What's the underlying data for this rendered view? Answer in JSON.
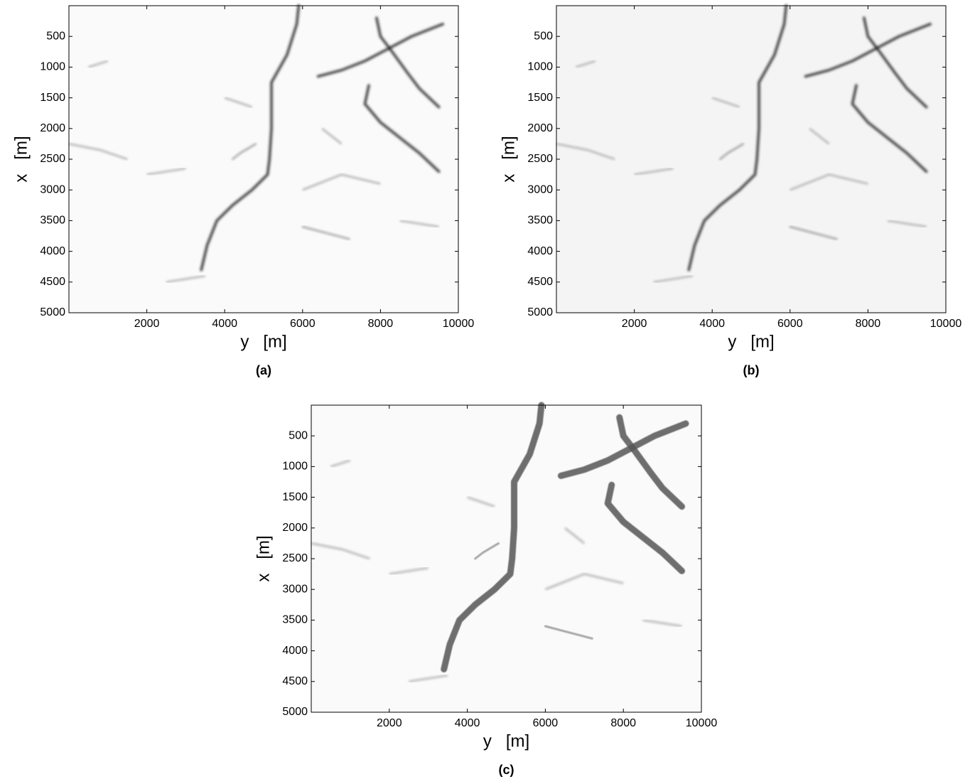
{
  "chart_data": [
    {
      "type": "image",
      "caption": "(a)",
      "x_label": "y   [m]",
      "y_label": "x   [m]",
      "xlim": [
        0,
        10000
      ],
      "ylim": [
        0,
        5000
      ],
      "xticks": [
        2000,
        4000,
        6000,
        8000,
        10000
      ],
      "yticks": [
        500,
        1000,
        1500,
        2000,
        2500,
        3000,
        3500,
        4000,
        4500,
        5000
      ]
    },
    {
      "type": "image",
      "caption": "(b)",
      "x_label": "y   [m]",
      "y_label": "x   [m]",
      "xlim": [
        0,
        10000
      ],
      "ylim": [
        0,
        5000
      ],
      "xticks": [
        2000,
        4000,
        6000,
        8000,
        10000
      ],
      "yticks": [
        500,
        1000,
        1500,
        2000,
        2500,
        3000,
        3500,
        4000,
        4500,
        5000
      ]
    },
    {
      "type": "image",
      "caption": "(c)",
      "x_label": "y   [m]",
      "y_label": "x   [m]",
      "xlim": [
        0,
        10000
      ],
      "ylim": [
        0,
        5000
      ],
      "xticks": [
        2000,
        4000,
        6000,
        8000,
        10000
      ],
      "yticks": [
        500,
        1000,
        1500,
        2000,
        2500,
        3000,
        3500,
        4000,
        4500,
        5000
      ]
    }
  ]
}
